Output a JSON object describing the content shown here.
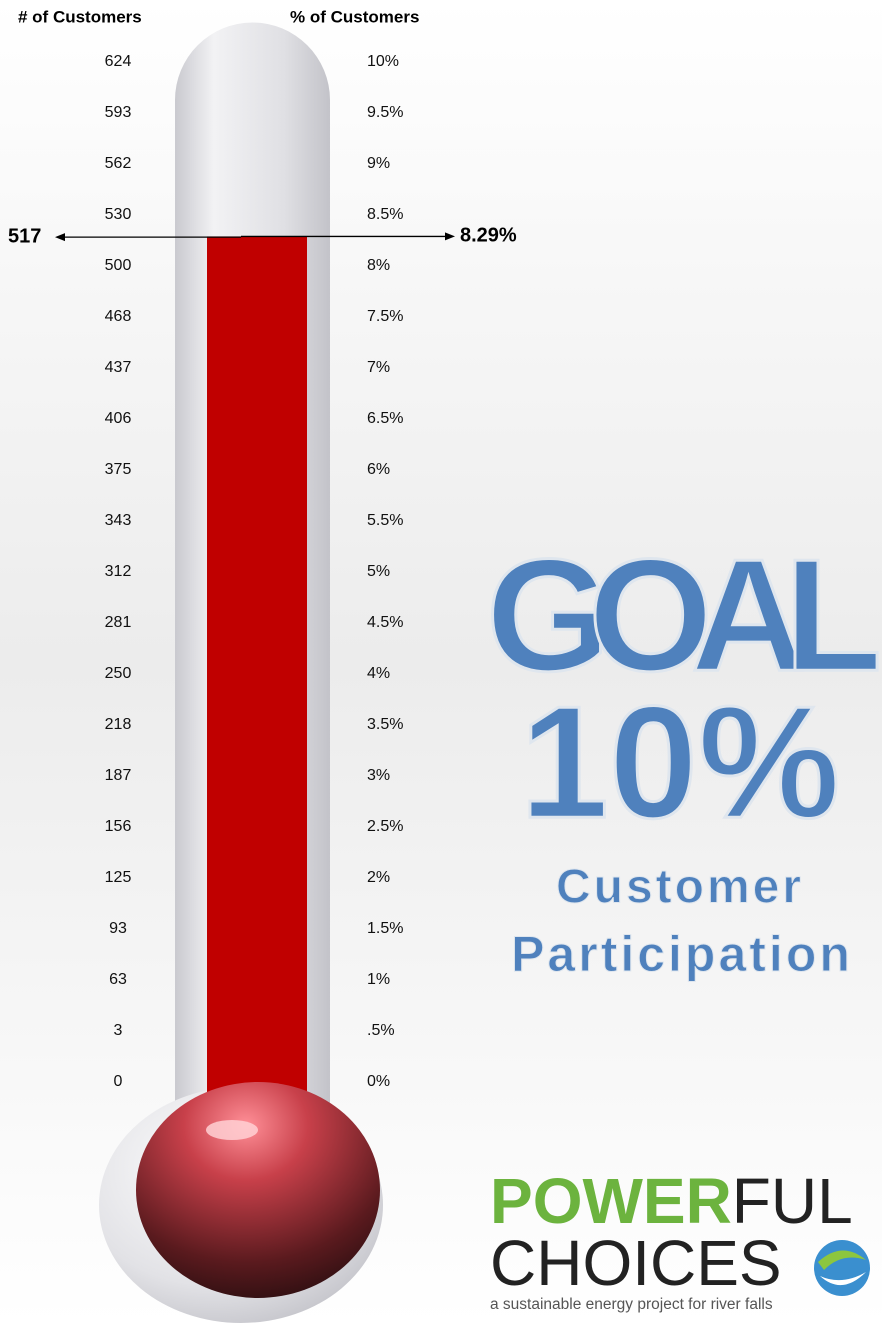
{
  "chart_data": {
    "type": "thermometer",
    "ylabel": "% of Customers",
    "y2label": "# of Customers",
    "values": [
      8.29
    ],
    "value_labels": [
      "8.29%"
    ],
    "y2values": [
      517
    ],
    "color": "#c00000",
    "ylim": [
      0,
      10
    ],
    "yticks": [
      {
        "value": 0,
        "label": "0%"
      },
      {
        "value": 0.5,
        "label": ".5%"
      },
      {
        "value": 1,
        "label": "1%"
      },
      {
        "value": 1.5,
        "label": "1.5%"
      },
      {
        "value": 2,
        "label": "2%"
      },
      {
        "value": 2.5,
        "label": "2.5%"
      },
      {
        "value": 3,
        "label": "3%"
      },
      {
        "value": 3.5,
        "label": "3.5%"
      },
      {
        "value": 4,
        "label": "4%"
      },
      {
        "value": 4.5,
        "label": "4.5%"
      },
      {
        "value": 5,
        "label": "5%"
      },
      {
        "value": 5.5,
        "label": "5.5%"
      },
      {
        "value": 6,
        "label": "6%"
      },
      {
        "value": 6.5,
        "label": "6.5%"
      },
      {
        "value": 7,
        "label": "7%"
      },
      {
        "value": 7.5,
        "label": "7.5%"
      },
      {
        "value": 8,
        "label": "8%"
      },
      {
        "value": 8.5,
        "label": "8.5%"
      },
      {
        "value": 9,
        "label": "9%"
      },
      {
        "value": 9.5,
        "label": "9.5%"
      },
      {
        "value": 10,
        "label": "10%"
      }
    ],
    "y2lim": [
      0,
      624
    ],
    "y2ticks": [
      0,
      3,
      63,
      93,
      125,
      156,
      187,
      218,
      250,
      281,
      312,
      343,
      375,
      406,
      437,
      468,
      500,
      530,
      562,
      593,
      624
    ]
  },
  "goal": {
    "title": "GOAL",
    "target": "10%",
    "line1": "Customer",
    "line2": "Participation"
  },
  "logo": {
    "power": "POWER",
    "ful": "FUL",
    "choices": "CHOICES",
    "tagline": "a sustainable energy project for river falls"
  }
}
